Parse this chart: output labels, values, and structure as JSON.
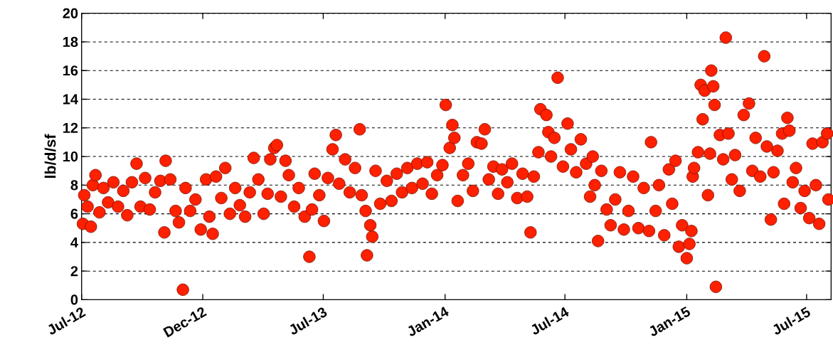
{
  "chart_data": {
    "type": "scatter",
    "ylabel": "lb/d/sf",
    "marker": "circle",
    "grid": "y",
    "xlim": [
      "2012-07-01",
      "2015-08-07"
    ],
    "xticks": [
      {
        "value": "2012-07-01",
        "label": "Jul-12"
      },
      {
        "value": "2012-12-31",
        "label": "Dec-12"
      },
      {
        "value": "2013-07-01",
        "label": "Jul-13"
      },
      {
        "value": "2014-01-01",
        "label": "Jan-14"
      },
      {
        "value": "2014-07-01",
        "label": "Jul-14"
      },
      {
        "value": "2015-01-01",
        "label": "Jan-15"
      },
      {
        "value": "2015-07-01",
        "label": "Jul-15"
      }
    ],
    "ylim": [
      0,
      20
    ],
    "yticks": [
      0,
      2,
      4,
      6,
      8,
      10,
      12,
      14,
      16,
      18,
      20
    ],
    "series": [
      {
        "color": "#ff2000",
        "x": [
          "2012-07-03",
          "2012-07-05",
          "2012-07-10",
          "2012-07-15",
          "2012-07-18",
          "2012-07-22",
          "2012-07-28",
          "2012-08-03",
          "2012-08-10",
          "2012-08-18",
          "2012-08-25",
          "2012-09-02",
          "2012-09-08",
          "2012-09-15",
          "2012-09-22",
          "2012-09-28",
          "2012-10-05",
          "2012-10-12",
          "2012-10-20",
          "2012-10-28",
          "2012-11-03",
          "2012-11-05",
          "2012-11-12",
          "2012-11-20",
          "2012-11-25",
          "2012-12-01",
          "2012-12-05",
          "2012-12-12",
          "2012-12-20",
          "2012-12-28",
          "2013-01-05",
          "2013-01-10",
          "2013-01-15",
          "2013-01-20",
          "2013-01-28",
          "2013-02-03",
          "2013-02-10",
          "2013-02-18",
          "2013-02-25",
          "2013-03-05",
          "2013-03-12",
          "2013-03-18",
          "2013-03-25",
          "2013-04-02",
          "2013-04-08",
          "2013-04-12",
          "2013-04-18",
          "2013-04-22",
          "2013-04-28",
          "2013-05-05",
          "2013-05-10",
          "2013-05-18",
          "2013-05-25",
          "2013-06-03",
          "2013-06-10",
          "2013-06-14",
          "2013-06-18",
          "2013-06-25",
          "2013-07-02",
          "2013-07-08",
          "2013-07-15",
          "2013-07-20",
          "2013-07-25",
          "2013-08-03",
          "2013-08-10",
          "2013-08-18",
          "2013-08-25",
          "2013-08-28",
          "2013-09-03",
          "2013-09-05",
          "2013-09-10",
          "2013-09-13",
          "2013-09-18",
          "2013-09-25",
          "2013-10-05",
          "2013-10-12",
          "2013-10-20",
          "2013-10-28",
          "2013-11-05",
          "2013-11-12",
          "2013-11-20",
          "2013-11-28",
          "2013-12-05",
          "2013-12-12",
          "2013-12-20",
          "2013-12-28",
          "2014-01-02",
          "2014-01-08",
          "2014-01-12",
          "2014-01-15",
          "2014-01-20",
          "2014-01-28",
          "2014-02-05",
          "2014-02-12",
          "2014-02-18",
          "2014-02-25",
          "2014-03-02",
          "2014-03-08",
          "2014-03-15",
          "2014-03-22",
          "2014-03-28",
          "2014-04-05",
          "2014-04-12",
          "2014-04-20",
          "2014-04-28",
          "2014-05-05",
          "2014-05-10",
          "2014-05-15",
          "2014-05-22",
          "2014-05-25",
          "2014-06-03",
          "2014-06-06",
          "2014-06-10",
          "2014-06-15",
          "2014-06-20",
          "2014-06-28",
          "2014-07-05",
          "2014-07-10",
          "2014-07-18",
          "2014-07-25",
          "2014-08-02",
          "2014-08-08",
          "2014-08-12",
          "2014-08-15",
          "2014-08-20",
          "2014-08-25",
          "2014-09-02",
          "2014-09-08",
          "2014-09-15",
          "2014-09-22",
          "2014-09-28",
          "2014-10-05",
          "2014-10-12",
          "2014-10-20",
          "2014-10-28",
          "2014-11-05",
          "2014-11-08",
          "2014-11-15",
          "2014-11-20",
          "2014-11-28",
          "2014-12-05",
          "2014-12-10",
          "2014-12-15",
          "2014-12-20",
          "2014-12-25",
          "2015-01-01",
          "2015-01-05",
          "2015-01-08",
          "2015-01-10",
          "2015-01-12",
          "2015-01-18",
          "2015-01-22",
          "2015-01-25",
          "2015-01-28",
          "2015-02-02",
          "2015-02-05",
          "2015-02-07",
          "2015-02-10",
          "2015-02-12",
          "2015-02-14",
          "2015-02-20",
          "2015-02-25",
          "2015-03-01",
          "2015-03-05",
          "2015-03-10",
          "2015-03-15",
          "2015-03-22",
          "2015-03-28",
          "2015-04-05",
          "2015-04-10",
          "2015-04-15",
          "2015-04-22",
          "2015-04-28",
          "2015-05-02",
          "2015-05-08",
          "2015-05-12",
          "2015-05-18",
          "2015-05-25",
          "2015-05-28",
          "2015-06-02",
          "2015-06-05",
          "2015-06-10",
          "2015-06-15",
          "2015-06-22",
          "2015-06-28",
          "2015-07-05",
          "2015-07-10",
          "2015-07-15",
          "2015-07-20",
          "2015-07-25",
          "2015-08-01",
          "2015-08-03"
        ],
        "values": [
          5.3,
          7.3,
          6.5,
          5.1,
          8.0,
          8.7,
          6.1,
          7.8,
          6.8,
          8.2,
          6.5,
          7.6,
          5.9,
          8.2,
          9.5,
          6.5,
          8.5,
          6.3,
          7.5,
          8.3,
          4.7,
          9.7,
          8.4,
          6.2,
          5.4,
          0.7,
          7.8,
          6.2,
          7.0,
          4.9,
          8.4,
          5.8,
          4.6,
          8.6,
          7.1,
          9.2,
          6.0,
          7.8,
          6.6,
          5.8,
          7.5,
          9.9,
          8.4,
          6.0,
          7.4,
          9.8,
          10.6,
          10.8,
          7.2,
          9.7,
          8.7,
          6.5,
          7.8,
          5.8,
          3.0,
          6.3,
          8.8,
          7.3,
          5.5,
          8.5,
          10.5,
          11.5,
          8.1,
          9.8,
          7.5,
          9.2,
          11.9,
          7.3,
          6.2,
          3.1,
          5.2,
          4.4,
          9.0,
          6.7,
          8.3,
          6.9,
          8.8,
          7.5,
          9.2,
          7.8,
          9.5,
          8.1,
          9.6,
          7.4,
          8.7,
          9.4,
          13.6,
          10.6,
          12.2,
          11.3,
          6.9,
          8.7,
          9.5,
          7.6,
          11.0,
          10.9,
          11.9,
          8.4,
          9.3,
          7.4,
          9.1,
          8.2,
          9.5,
          7.1,
          8.8,
          7.2,
          4.7,
          8.6,
          10.3,
          13.3,
          12.9,
          11.7,
          10.0,
          11.3,
          15.5,
          9.3,
          12.3,
          10.5,
          8.9,
          11.2,
          9.5,
          7.2,
          10.0,
          8.0,
          4.1,
          9.0,
          6.3,
          5.2,
          7.0,
          8.9,
          4.9,
          6.2,
          8.6,
          5.0,
          7.8,
          4.8,
          11.0,
          6.2,
          8.0,
          4.5,
          9.1,
          6.7,
          9.7,
          3.7,
          5.2,
          2.9,
          3.9,
          4.8,
          8.6,
          9.2,
          10.3,
          15.0,
          12.6,
          14.6,
          7.3,
          10.2,
          16.0,
          14.9,
          13.6,
          0.9,
          11.5,
          9.8,
          18.3,
          11.6,
          8.4,
          10.1,
          7.6,
          12.9,
          13.7,
          9.0,
          11.3,
          8.6,
          17.0,
          10.7,
          5.6,
          8.9,
          10.4,
          11.6,
          6.7,
          12.7,
          11.8,
          8.2,
          9.2,
          6.4,
          7.6,
          5.7,
          10.9,
          8.0,
          5.3,
          11.0,
          11.6,
          7.0
        ]
      }
    ]
  }
}
